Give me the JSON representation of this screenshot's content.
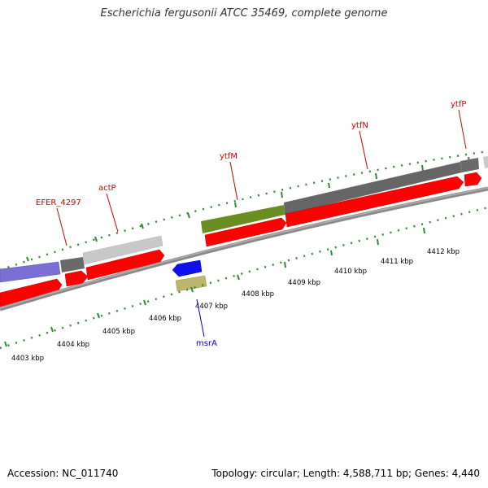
{
  "title": "Escherichia fergusonii ATCC 35469, complete genome",
  "footer": {
    "accession": "Accession: NC_011740",
    "stats": "Topology: circular; Length: 4,588,711 bp; Genes: 4,440"
  },
  "colors": {
    "backbone": "#8a8a8a",
    "tick": "#2e8b2e",
    "cds_forward": "#ff0000",
    "cds_reverse": "#1010ee",
    "blast_dark": "#666666",
    "blast_light": "#c8c8c8",
    "blast_purple": "#7b6fd6",
    "blast_olive": "#6b8e23",
    "blast_khaki": "#bdb76b",
    "label_forward": "#cc0000",
    "label_reverse": "#0000cc"
  },
  "kbp_labels": [
    "4403 kbp",
    "4404 kbp",
    "4405 kbp",
    "4406 kbp",
    "4407 kbp",
    "4408 kbp",
    "4409 kbp",
    "4410 kbp",
    "4411 kbp",
    "4412 kbp"
  ],
  "gene_labels": {
    "efer": "EFER_4297",
    "actp": "actP",
    "ytfm": "ytfM",
    "ytfn": "ytfN",
    "ytfp": "ytfP",
    "msra": "msrA"
  }
}
